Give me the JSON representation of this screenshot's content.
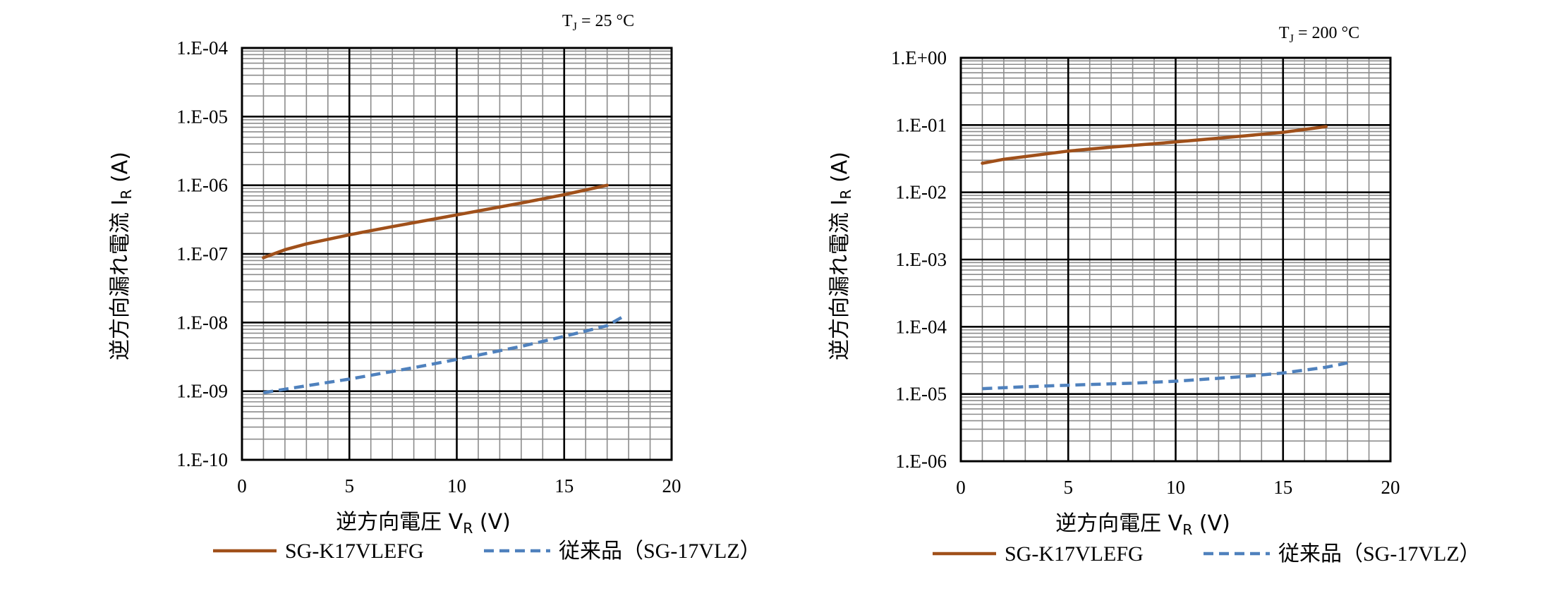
{
  "colors": {
    "series1": "#A0501A",
    "series2": "#4F81BD"
  },
  "chart_data": [
    {
      "type": "line",
      "title": "",
      "condition": {
        "base": "T",
        "sub": "J",
        "rest": " = 25 °C"
      },
      "xlabel": {
        "base": "逆方向電圧 V",
        "sub": "R",
        "rest": " (V)"
      },
      "ylabel": {
        "base": "逆方向漏れ電流 I",
        "sub": "R",
        "rest": " (A)"
      },
      "xlim": [
        0,
        20
      ],
      "ylim": [
        1e-10,
        0.0001
      ],
      "yscale": "log",
      "xticks": [
        "0",
        "5",
        "10",
        "15",
        "20"
      ],
      "yticks": [
        "1.E-10",
        "1.E-09",
        "1.E-08",
        "1.E-07",
        "1.E-06",
        "1.E-05",
        "1.E-04"
      ],
      "grid": true,
      "legend_position": "bottom",
      "series": [
        {
          "name": "SG-K17VLEFG",
          "style": "solid",
          "x": [
            1,
            2,
            3,
            5,
            7,
            10,
            13,
            15,
            17
          ],
          "y": [
            8.8e-08,
            1.15e-07,
            1.4e-07,
            1.9e-07,
            2.5e-07,
            3.7e-07,
            5.5e-07,
            7.3e-07,
            1e-06
          ]
        },
        {
          "name": "従来品（SG-17VLZ）",
          "style": "dashed",
          "x": [
            1,
            3,
            5,
            8,
            10,
            13,
            15,
            17,
            17.7
          ],
          "y": [
            9.5e-10,
            1.2e-09,
            1.5e-09,
            2.2e-09,
            2.9e-09,
            4.5e-09,
            6.3e-09,
            9e-09,
            1.2e-08
          ]
        }
      ]
    },
    {
      "type": "line",
      "title": "",
      "condition": {
        "base": "T",
        "sub": "J",
        "rest": " = 200 °C"
      },
      "xlabel": {
        "base": "逆方向電圧 V",
        "sub": "R",
        "rest": " (V)"
      },
      "ylabel": {
        "base": "逆方向漏れ電流 I",
        "sub": "R",
        "rest": " (A)"
      },
      "xlim": [
        0,
        20
      ],
      "ylim": [
        1e-06,
        1
      ],
      "yscale": "log",
      "xticks": [
        "0",
        "5",
        "10",
        "15",
        "20"
      ],
      "yticks": [
        "1.E-06",
        "1.E-05",
        "1.E-04",
        "1.E-03",
        "1.E-02",
        "1.E-01",
        "1.E+00"
      ],
      "grid": true,
      "legend_position": "bottom",
      "series": [
        {
          "name": "SG-K17VLEFG",
          "style": "solid",
          "x": [
            1,
            2,
            3,
            5,
            7,
            10,
            13,
            15,
            17
          ],
          "y": [
            0.027,
            0.031,
            0.034,
            0.041,
            0.047,
            0.056,
            0.068,
            0.078,
            0.095
          ]
        },
        {
          "name": "従来品（SG-17VLZ）",
          "style": "dashed",
          "x": [
            1,
            3,
            5,
            8,
            10,
            13,
            15,
            17,
            18
          ],
          "y": [
            1.2e-05,
            1.28e-05,
            1.35e-05,
            1.45e-05,
            1.55e-05,
            1.8e-05,
            2.05e-05,
            2.5e-05,
            2.9e-05
          ]
        }
      ]
    }
  ]
}
